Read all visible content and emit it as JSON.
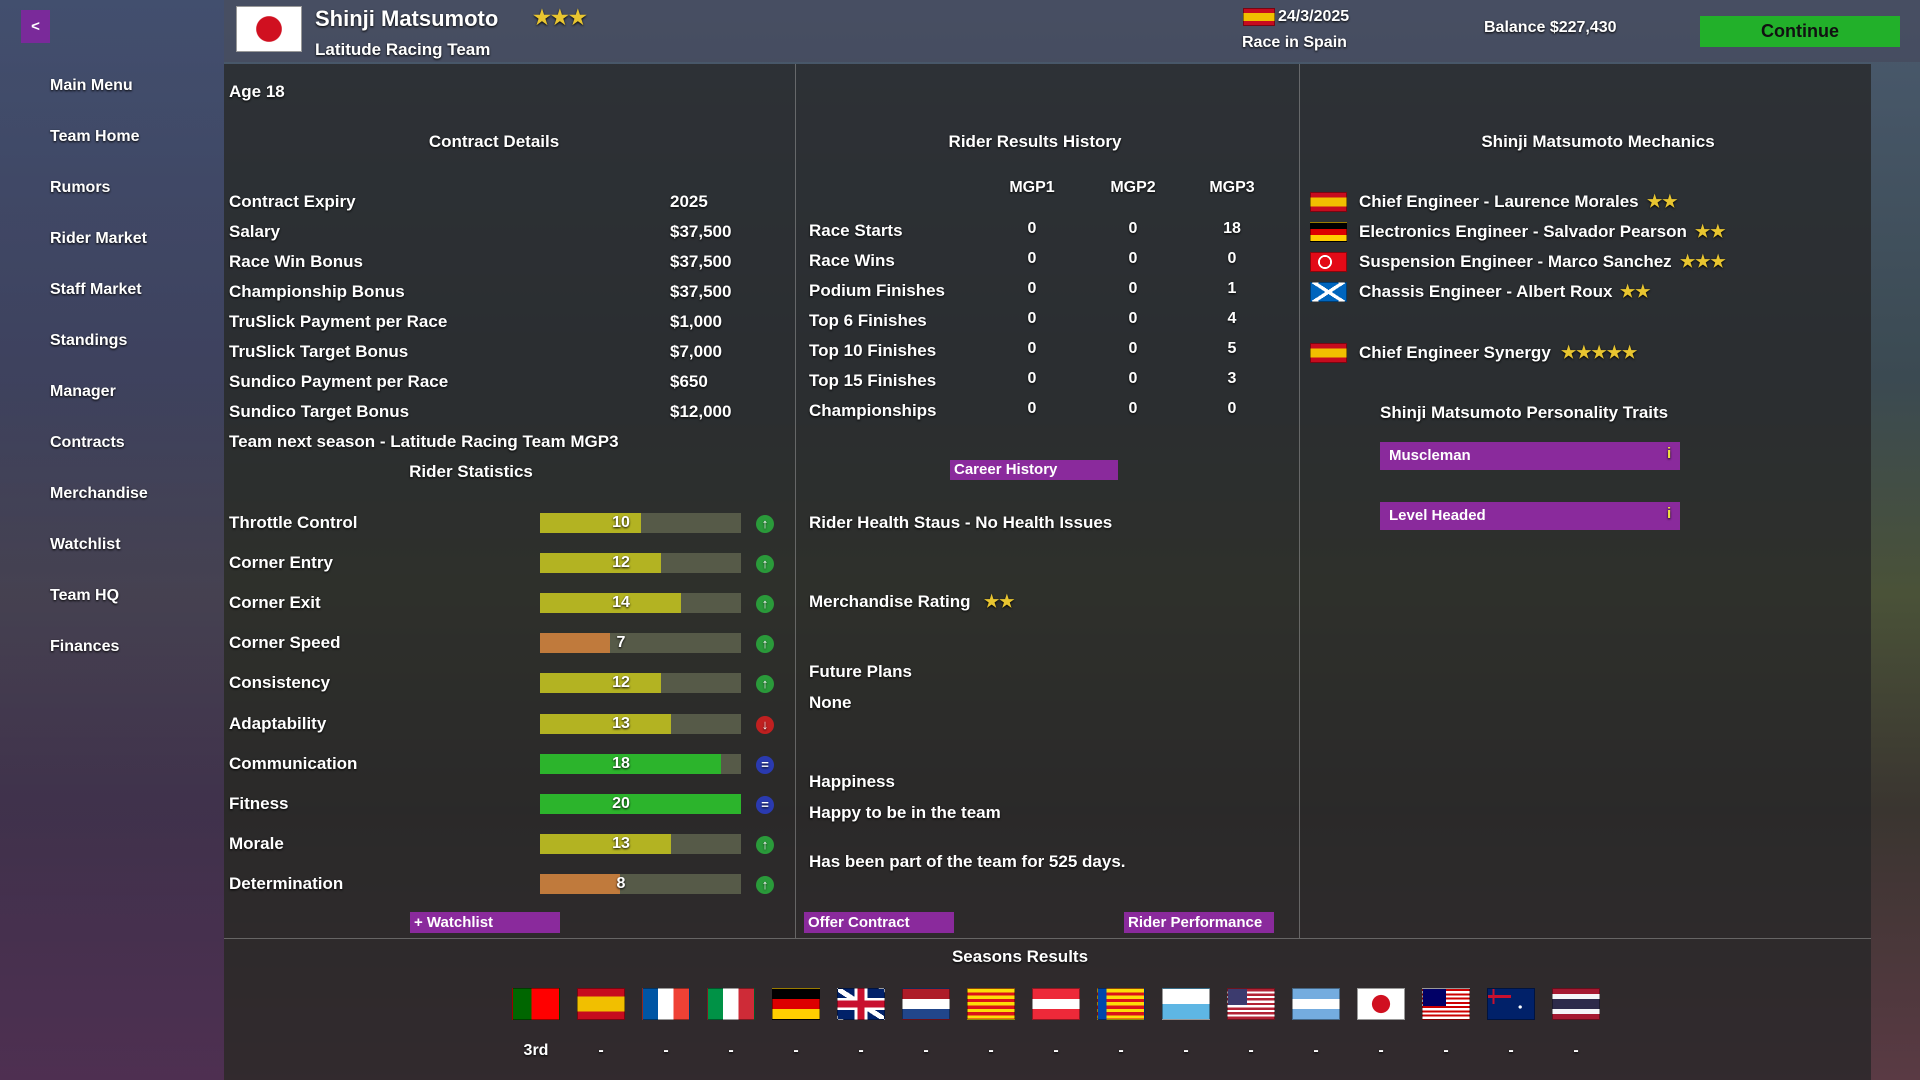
{
  "nav": {
    "back": "<",
    "menu": [
      "Main Menu",
      "Team Home",
      "Rumors",
      "Rider Market",
      "Staff Market",
      "Standings",
      "Manager",
      "Contracts",
      "Merchandise",
      "Watchlist",
      "Team HQ",
      "Finances"
    ]
  },
  "header": {
    "rider_name": "Shinji Matsumoto",
    "rider_stars": "★★★",
    "team": "Latitude Racing Team",
    "date": "24/3/2025",
    "race": "Race in Spain",
    "balance": "Balance $227,430",
    "continue": "Continue"
  },
  "profile": {
    "age": "Age 18"
  },
  "contract": {
    "title": "Contract Details",
    "rows": [
      [
        "Contract Expiry",
        "2025"
      ],
      [
        "Salary",
        "$37,500"
      ],
      [
        "Race Win Bonus",
        "$37,500"
      ],
      [
        "Championship Bonus",
        "$37,500"
      ],
      [
        "TruSlick Payment per Race",
        "$1,000"
      ],
      [
        "TruSlick Target Bonus",
        "$7,000"
      ],
      [
        "Sundico Payment per Race",
        "$650"
      ],
      [
        "Sundico Target Bonus",
        "$12,000"
      ]
    ],
    "next_season": "Team next season - Latitude Racing Team MGP3"
  },
  "statistics": {
    "title": "Rider Statistics",
    "rows": [
      {
        "name": "Throttle Control",
        "value": 10,
        "trend": "up"
      },
      {
        "name": "Corner Entry",
        "value": 12,
        "trend": "up"
      },
      {
        "name": "Corner Exit",
        "value": 14,
        "trend": "up"
      },
      {
        "name": "Corner Speed",
        "value": 7,
        "trend": "up"
      },
      {
        "name": "Consistency",
        "value": 12,
        "trend": "up"
      },
      {
        "name": "Adaptability",
        "value": 13,
        "trend": "down"
      },
      {
        "name": "Communication",
        "value": 18,
        "trend": "equal"
      },
      {
        "name": "Fitness",
        "value": 20,
        "trend": "equal"
      },
      {
        "name": "Morale",
        "value": 13,
        "trend": "up"
      },
      {
        "name": "Determination",
        "value": 8,
        "trend": "up"
      }
    ],
    "watchlist": "+ Watchlist"
  },
  "results": {
    "title": "Rider Results History",
    "columns": [
      "MGP1",
      "MGP2",
      "MGP3"
    ],
    "rows": [
      {
        "label": "Race Starts",
        "values": [
          0,
          0,
          18
        ]
      },
      {
        "label": "Race Wins",
        "values": [
          0,
          0,
          0
        ]
      },
      {
        "label": "Podium Finishes",
        "values": [
          0,
          0,
          1
        ]
      },
      {
        "label": "Top 6 Finishes",
        "values": [
          0,
          0,
          4
        ]
      },
      {
        "label": "Top 10 Finishes",
        "values": [
          0,
          0,
          5
        ]
      },
      {
        "label": "Top 15 Finishes",
        "values": [
          0,
          0,
          3
        ]
      },
      {
        "label": "Championships",
        "values": [
          0,
          0,
          0
        ]
      }
    ],
    "career_button": "Career History"
  },
  "health": "Rider Health Staus - No Health Issues",
  "merchandise": {
    "label": "Merchandise Rating",
    "stars": "★★"
  },
  "future_plans": {
    "label": "Future Plans",
    "value": "None"
  },
  "happiness": {
    "label": "Happiness",
    "value": "Happy to be in the team"
  },
  "tenure": "Has been part of the team for 525 days.",
  "buttons": {
    "offer": "Offer Contract",
    "performance": "Rider Performance"
  },
  "mechanics": {
    "title": "Shinji Matsumoto Mechanics",
    "staff": [
      {
        "role": "Chief Engineer - Laurence Morales",
        "stars": "★★"
      },
      {
        "role": "Electronics Engineer - Salvador Pearson",
        "stars": "★★"
      },
      {
        "role": "Suspension Engineer - Marco Sanchez",
        "stars": "★★★"
      },
      {
        "role": "Chassis Engineer - Albert Roux",
        "stars": "★★"
      }
    ],
    "synergy": {
      "label": "Chief Engineer Synergy",
      "stars": "★★★★★"
    }
  },
  "traits": {
    "title": "Shinji Matsumoto Personality Traits",
    "items": [
      "Muscleman",
      "Level Headed"
    ],
    "info": "i"
  },
  "seasons": {
    "title": "Seasons Results",
    "results": [
      "3rd",
      "-",
      "-",
      "-",
      "-",
      "-",
      "-",
      "-",
      "-",
      "-",
      "-",
      "-",
      "-",
      "-",
      "-",
      "-",
      "-"
    ]
  }
}
